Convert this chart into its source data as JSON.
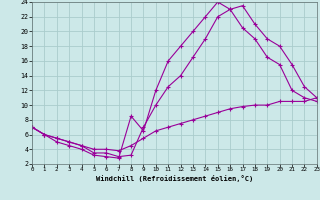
{
  "xlabel": "Windchill (Refroidissement éolien,°C)",
  "bg_color": "#cce8e8",
  "grid_color": "#aacccc",
  "line_color": "#990099",
  "xlim": [
    0,
    23
  ],
  "ylim": [
    2,
    24
  ],
  "xticks": [
    0,
    1,
    2,
    3,
    4,
    5,
    6,
    7,
    8,
    9,
    10,
    11,
    12,
    13,
    14,
    15,
    16,
    17,
    18,
    19,
    20,
    21,
    22,
    23
  ],
  "yticks": [
    2,
    4,
    6,
    8,
    10,
    12,
    14,
    16,
    18,
    20,
    22,
    24
  ],
  "line1_x": [
    0,
    1,
    2,
    3,
    4,
    5,
    6,
    7,
    8,
    9,
    10,
    11,
    12,
    13,
    14,
    15,
    16,
    17,
    18,
    19,
    20,
    21,
    22,
    23
  ],
  "line1_y": [
    7,
    6,
    5,
    4.5,
    4,
    3.2,
    3.0,
    2.8,
    8.5,
    6.5,
    12,
    16,
    18,
    20,
    22,
    24,
    23,
    20.5,
    19.0,
    16.5,
    15.5,
    12,
    11,
    10.5
  ],
  "line2_x": [
    0,
    1,
    2,
    3,
    4,
    5,
    6,
    7,
    8,
    9,
    10,
    11,
    12,
    13,
    14,
    15,
    16,
    17,
    18,
    19,
    20,
    21,
    22,
    23
  ],
  "line2_y": [
    7,
    6,
    5.5,
    5,
    4.5,
    3.5,
    3.5,
    3.0,
    3.2,
    7,
    10,
    12.5,
    14,
    16.5,
    19,
    22,
    23,
    23.5,
    21,
    19,
    18,
    15.5,
    12.5,
    11
  ],
  "line3_x": [
    0,
    1,
    2,
    3,
    4,
    5,
    6,
    7,
    8,
    9,
    10,
    11,
    12,
    13,
    14,
    15,
    16,
    17,
    18,
    19,
    20,
    21,
    22,
    23
  ],
  "line3_y": [
    7,
    6,
    5.5,
    5,
    4.5,
    4.0,
    4.0,
    3.8,
    4.5,
    5.5,
    6.5,
    7.0,
    7.5,
    8.0,
    8.5,
    9.0,
    9.5,
    9.8,
    10,
    10,
    10.5,
    10.5,
    10.5,
    11
  ]
}
